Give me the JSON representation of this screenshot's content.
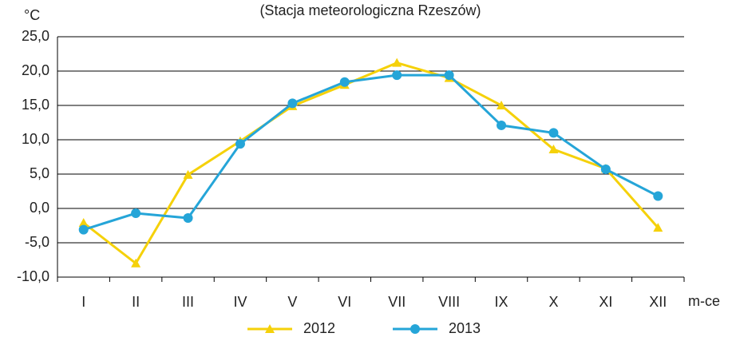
{
  "chart_data": {
    "type": "line",
    "title": "(Stacja meteorologiczna Rzeszów)",
    "y_unit": "°C",
    "x_label": "m-ce",
    "categories": [
      "I",
      "II",
      "III",
      "IV",
      "V",
      "VI",
      "VII",
      "VIII",
      "IX",
      "X",
      "XI",
      "XII"
    ],
    "series": [
      {
        "name": "2012",
        "color": "#f5d10a",
        "marker": "triangle",
        "values": [
          -2.1,
          -8.0,
          4.9,
          9.8,
          14.9,
          18.0,
          21.2,
          19.0,
          15.0,
          8.6,
          5.8,
          -2.8
        ]
      },
      {
        "name": "2013",
        "color": "#25a5d8",
        "marker": "circle",
        "values": [
          -3.1,
          -0.7,
          -1.4,
          9.4,
          15.3,
          18.4,
          19.4,
          19.4,
          12.1,
          11.0,
          5.7,
          1.8
        ]
      }
    ],
    "ylim": [
      -10,
      25
    ],
    "yticks": [
      {
        "value": -10,
        "label": "-10,0"
      },
      {
        "value": -5,
        "label": "-5,0"
      },
      {
        "value": 0,
        "label": "0,0"
      },
      {
        "value": 5,
        "label": "5,0"
      },
      {
        "value": 10,
        "label": "10,0"
      },
      {
        "value": 15,
        "label": "15,0"
      },
      {
        "value": 20,
        "label": "20,0"
      },
      {
        "value": 25,
        "label": "25,0"
      }
    ],
    "grid": true,
    "legend": "bottom"
  }
}
